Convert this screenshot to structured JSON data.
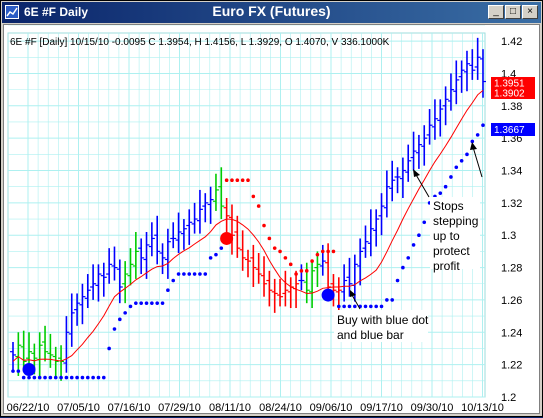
{
  "window": {
    "name": "6E #F Daily",
    "chart_title": "Euro FX (Futures)",
    "buttons": {
      "minimize": "_",
      "maximize": "□",
      "close": "×"
    }
  },
  "info_line": "6E #F [Daily] 10/15/10 -0.0095 C 1.3954, H 1.4156, L 1.3929, O 1.4070, V 336.1000K",
  "price_tags": [
    {
      "text": "1.3951",
      "color": "#ff0000"
    },
    {
      "text": "1.3902",
      "color": "#ff0000"
    },
    {
      "text": "1.3667",
      "color": "#0000ff"
    }
  ],
  "annotations": {
    "stops": [
      "Stops",
      "stepping",
      "up to",
      "protect",
      "profit"
    ],
    "buy": [
      "Buy with blue dot",
      "and blue bar"
    ]
  },
  "colors": {
    "up": "#0000ff",
    "down": "#ff0000",
    "neutral": "#00cc00",
    "ma": "#ff0000",
    "stop": "#0000ff",
    "grid": "#aef0f0"
  },
  "chart_data": {
    "type": "ohlc",
    "y_ticks": [
      "1.42",
      "1.4",
      "1.38",
      "1.36",
      "1.34",
      "1.32",
      "1.3",
      "1.28",
      "1.26",
      "1.24",
      "1.22",
      "1.2"
    ],
    "ylim": [
      1.2,
      1.425
    ],
    "x_ticks": [
      "06/22/10",
      "07/05/10",
      "07/16/10",
      "07/29/10",
      "08/11/10",
      "08/24/10",
      "09/06/10",
      "09/17/10",
      "09/30/10",
      "10/13/10"
    ],
    "closes": [
      1.226,
      1.232,
      1.222,
      1.228,
      1.224,
      1.232,
      1.228,
      1.226,
      1.222,
      1.222,
      1.24,
      1.252,
      1.258,
      1.262,
      1.266,
      1.27,
      1.276,
      1.274,
      1.282,
      1.28,
      1.268,
      1.276,
      1.282,
      1.29,
      1.286,
      1.294,
      1.298,
      1.29,
      1.286,
      1.296,
      1.298,
      1.302,
      1.304,
      1.308,
      1.31,
      1.316,
      1.32,
      1.322,
      1.328,
      1.318,
      1.312,
      1.3,
      1.292,
      1.286,
      1.284,
      1.28,
      1.276,
      1.27,
      1.266,
      1.264,
      1.262,
      1.266,
      1.268,
      1.27,
      1.272,
      1.266,
      1.278,
      1.282,
      1.284,
      1.268,
      1.266,
      1.266,
      1.272,
      1.27,
      1.282,
      1.29,
      1.296,
      1.304,
      1.31,
      1.318,
      1.33,
      1.334,
      1.336,
      1.34,
      1.346,
      1.352,
      1.356,
      1.36,
      1.368,
      1.372,
      1.378,
      1.384,
      1.39,
      1.396,
      1.402,
      1.406,
      1.402,
      1.41,
      1.395
    ],
    "markers": [
      {
        "type": "buy",
        "date_index": 3,
        "price": 1.217
      },
      {
        "type": "sell",
        "date_index": 40,
        "price": 1.298
      },
      {
        "type": "buy",
        "date_index": 59,
        "price": 1.263
      }
    ]
  }
}
